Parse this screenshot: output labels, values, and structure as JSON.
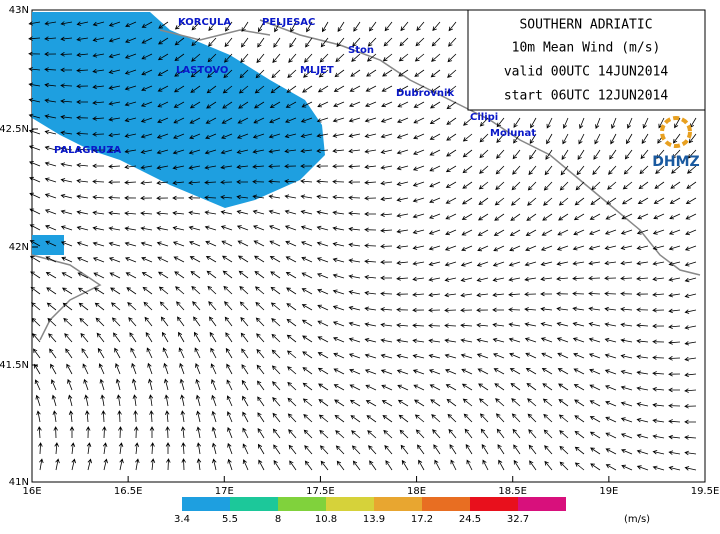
{
  "info_box": {
    "lines": [
      "SOUTHERN ADRIATIC",
      "10m  Mean Wind  (m/s)",
      "valid 00UTC 14JUN2014",
      "start 06UTC 12JUN2014"
    ]
  },
  "logo": "DHMZ",
  "places": [
    "KORCULA",
    "PELJESAC",
    "Ston",
    "LASTOVO",
    "MLJET",
    "Dubrovnik",
    "Cilipi",
    "Molunat",
    "PALAGRUZA"
  ],
  "lat_labels": [
    "43N",
    "42.5N",
    "42N",
    "41.5N",
    "41N"
  ],
  "lon_labels": [
    "16E",
    "16.5E",
    "17E",
    "17.5E",
    "18E",
    "18.5E",
    "19E",
    "19.5E"
  ],
  "colorbar": {
    "labels": [
      "3.4",
      "5.5",
      "8",
      "10.8",
      "13.9",
      "17.2",
      "24.5",
      "32.7"
    ],
    "unit": "(m/s)",
    "colors": [
      "#1e9fe0",
      "#1cc89a",
      "#80d23c",
      "#d6d23a",
      "#e8a630",
      "#e86e22",
      "#e8101c",
      "#d8107c"
    ]
  }
}
